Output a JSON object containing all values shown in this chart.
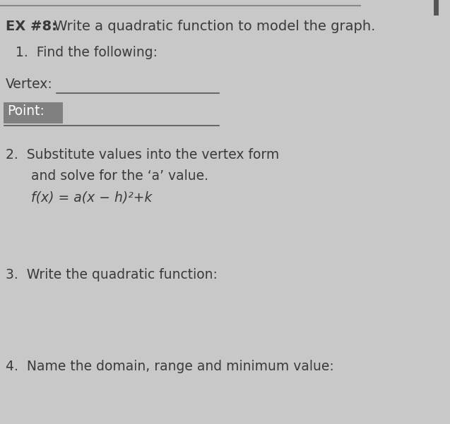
{
  "background_color": "#c8c8c8",
  "top_line_color": "#888888",
  "title_bold": "EX #8:",
  "title_normal": " Write a quadratic function to model the graph.",
  "item1_header": "1.  Find the following:",
  "vertex_label": "Vertex:",
  "point_label": "Point:",
  "point_highlight_color": "#808080",
  "item2_line1": "2.  Substitute values into the vertex form",
  "item2_line2": "      and solve for the ‘a’ value.",
  "item2_formula": "      f(x) = a(x − h)²+k",
  "item3": "3.  Write the quadratic function:",
  "item4": "4.  Name the domain, range and minimum value:",
  "right_tab_color": "#555555",
  "font_size_title": 14,
  "font_size_body": 13.5,
  "text_color": "#3a3a3a",
  "text_color_light": "#555555"
}
